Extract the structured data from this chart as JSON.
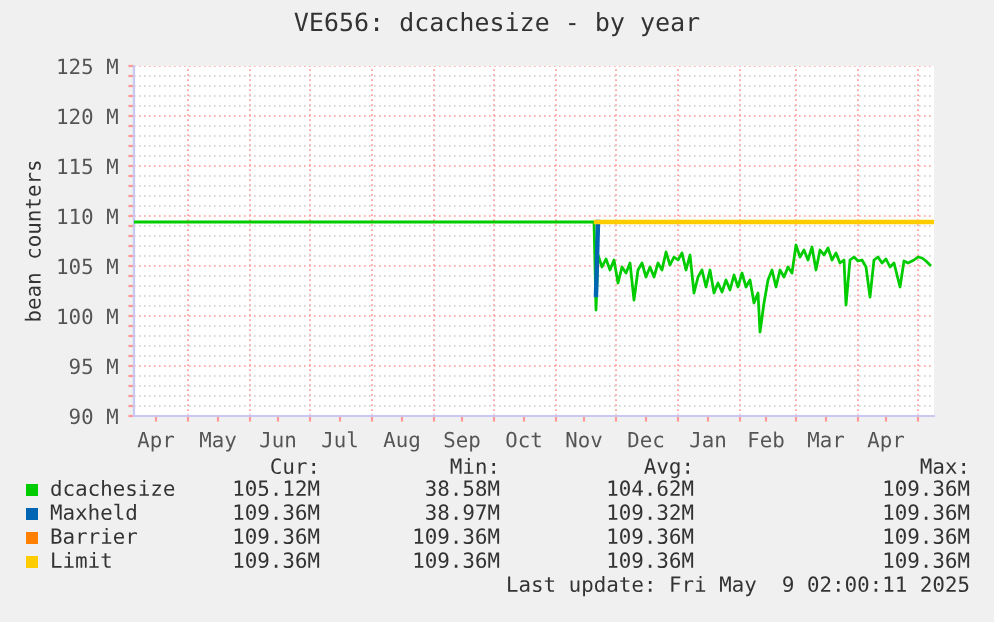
{
  "chart_data": {
    "type": "line",
    "title": "VE656: dcachesize - by year",
    "ylabel": "bean counters",
    "xlim": [
      "2024-04-04",
      "2025-05-09"
    ],
    "ylim": [
      90000000,
      125000000
    ],
    "xticks": [
      {
        "value": "2024-04-15",
        "label": "Apr"
      },
      {
        "value": "2024-05-01",
        "label": null
      },
      {
        "value": "2024-05-16",
        "label": "May"
      },
      {
        "value": "2024-06-01",
        "label": null
      },
      {
        "value": "2024-06-15",
        "label": "Jun"
      },
      {
        "value": "2024-07-01",
        "label": null
      },
      {
        "value": "2024-07-16",
        "label": "Jul"
      },
      {
        "value": "2024-08-01",
        "label": null
      },
      {
        "value": "2024-08-16",
        "label": "Aug"
      },
      {
        "value": "2024-09-01",
        "label": null
      },
      {
        "value": "2024-09-15",
        "label": "Sep"
      },
      {
        "value": "2024-10-01",
        "label": null
      },
      {
        "value": "2024-10-16",
        "label": "Oct"
      },
      {
        "value": "2024-11-01",
        "label": null
      },
      {
        "value": "2024-11-15",
        "label": "Nov"
      },
      {
        "value": "2024-12-01",
        "label": null
      },
      {
        "value": "2024-12-16",
        "label": "Dec"
      },
      {
        "value": "2025-01-01",
        "label": null
      },
      {
        "value": "2025-01-16",
        "label": "Jan"
      },
      {
        "value": "2025-02-01",
        "label": null
      },
      {
        "value": "2025-02-14",
        "label": "Feb"
      },
      {
        "value": "2025-03-01",
        "label": null
      },
      {
        "value": "2025-03-16",
        "label": "Mar"
      },
      {
        "value": "2025-04-01",
        "label": null
      },
      {
        "value": "2025-04-15",
        "label": "Apr"
      },
      {
        "value": "2025-05-01",
        "label": null
      }
    ],
    "yticks": [
      {
        "value": 90000000,
        "label": "90 M"
      },
      {
        "value": 91000000,
        "label": null
      },
      {
        "value": 92000000,
        "label": null
      },
      {
        "value": 93000000,
        "label": null
      },
      {
        "value": 94000000,
        "label": null
      },
      {
        "value": 95000000,
        "label": "95 M"
      },
      {
        "value": 96000000,
        "label": null
      },
      {
        "value": 97000000,
        "label": null
      },
      {
        "value": 98000000,
        "label": null
      },
      {
        "value": 99000000,
        "label": null
      },
      {
        "value": 100000000,
        "label": "100 M"
      },
      {
        "value": 101000000,
        "label": null
      },
      {
        "value": 102000000,
        "label": null
      },
      {
        "value": 103000000,
        "label": null
      },
      {
        "value": 104000000,
        "label": null
      },
      {
        "value": 105000000,
        "label": "105 M"
      },
      {
        "value": 106000000,
        "label": null
      },
      {
        "value": 107000000,
        "label": null
      },
      {
        "value": 108000000,
        "label": null
      },
      {
        "value": 109000000,
        "label": null
      },
      {
        "value": 110000000,
        "label": "110 M"
      },
      {
        "value": 111000000,
        "label": null
      },
      {
        "value": 112000000,
        "label": null
      },
      {
        "value": 113000000,
        "label": null
      },
      {
        "value": 114000000,
        "label": null
      },
      {
        "value": 115000000,
        "label": "115 M"
      },
      {
        "value": 116000000,
        "label": null
      },
      {
        "value": 117000000,
        "label": null
      },
      {
        "value": 118000000,
        "label": null
      },
      {
        "value": 119000000,
        "label": null
      },
      {
        "value": 120000000,
        "label": "120 M"
      },
      {
        "value": 121000000,
        "label": null
      },
      {
        "value": 122000000,
        "label": null
      },
      {
        "value": 123000000,
        "label": null
      },
      {
        "value": 124000000,
        "label": null
      },
      {
        "value": 125000000,
        "label": "125 M"
      }
    ],
    "grid": true,
    "legend": "bottom",
    "marker": "none",
    "line_style": "solid",
    "series": [
      {
        "name": "dcachesize",
        "color": "#00cc00",
        "x": [
          "2024-04-04",
          "2024-11-20",
          "2024-11-21",
          "2024-11-22",
          "2024-11-24",
          "2024-11-26",
          "2024-11-28",
          "2024-11-30",
          "2024-12-02",
          "2024-12-04",
          "2024-12-06",
          "2024-12-08",
          "2024-12-10",
          "2024-12-12",
          "2024-12-14",
          "2024-12-16",
          "2024-12-18",
          "2024-12-20",
          "2024-12-22",
          "2024-12-24",
          "2024-12-26",
          "2024-12-28",
          "2024-12-30",
          "2025-01-01",
          "2025-01-03",
          "2025-01-05",
          "2025-01-07",
          "2025-01-09",
          "2025-01-11",
          "2025-01-13",
          "2025-01-15",
          "2025-01-17",
          "2025-01-19",
          "2025-01-21",
          "2025-01-23",
          "2025-01-25",
          "2025-01-27",
          "2025-01-29",
          "2025-01-31",
          "2025-02-02",
          "2025-02-04",
          "2025-02-06",
          "2025-02-08",
          "2025-02-10",
          "2025-02-11",
          "2025-02-13",
          "2025-02-15",
          "2025-02-17",
          "2025-02-19",
          "2025-02-21",
          "2025-02-23",
          "2025-02-25",
          "2025-02-27",
          "2025-03-01",
          "2025-03-03",
          "2025-03-05",
          "2025-03-07",
          "2025-03-09",
          "2025-03-11",
          "2025-03-13",
          "2025-03-15",
          "2025-03-17",
          "2025-03-19",
          "2025-03-21",
          "2025-03-23",
          "2025-03-25",
          "2025-03-26",
          "2025-03-28",
          "2025-03-30",
          "2025-04-01",
          "2025-04-03",
          "2025-04-05",
          "2025-04-07",
          "2025-04-09",
          "2025-04-11",
          "2025-04-13",
          "2025-04-15",
          "2025-04-17",
          "2025-04-19",
          "2025-04-22",
          "2025-04-24",
          "2025-04-26",
          "2025-04-29",
          "2025-05-01",
          "2025-05-03",
          "2025-05-05",
          "2025-05-07"
        ],
        "values": [
          109400000,
          109400000,
          100600000,
          106100000,
          104900000,
          105700000,
          104600000,
          105600000,
          103300000,
          104900000,
          104300000,
          105300000,
          101600000,
          104600000,
          105300000,
          103900000,
          104900000,
          103900000,
          105300000,
          104600000,
          106400000,
          105100000,
          105900000,
          105600000,
          106300000,
          104600000,
          106100000,
          102300000,
          103900000,
          104600000,
          102900000,
          104600000,
          102300000,
          103300000,
          102400000,
          103600000,
          102600000,
          104100000,
          102900000,
          104300000,
          102900000,
          103600000,
          101300000,
          102300000,
          98400000,
          101300000,
          103600000,
          104600000,
          102900000,
          104600000,
          103900000,
          104900000,
          104300000,
          107100000,
          105900000,
          106600000,
          105600000,
          106900000,
          104600000,
          106600000,
          106100000,
          106800000,
          105600000,
          106300000,
          105300000,
          105600000,
          101100000,
          105600000,
          105900000,
          105500000,
          105600000,
          104900000,
          101900000,
          105600000,
          105900000,
          105300000,
          105700000,
          104900000,
          105300000,
          102900000,
          105500000,
          105300000,
          105600000,
          105900000,
          105800000,
          105500000,
          105100000
        ]
      },
      {
        "name": "Maxheld",
        "color": "#0066b3",
        "x": [
          "2024-11-21",
          "2024-11-22"
        ],
        "values": [
          102100000,
          109400000
        ]
      },
      {
        "name": "Barrier",
        "color": "#ff8000"
      },
      {
        "name": "Limit",
        "color": "#ffcc00",
        "x": [
          "2024-11-21",
          "2025-05-08"
        ],
        "values": [
          109400000,
          109400000
        ]
      }
    ],
    "annotations": [
      "Cur:",
      "Min:",
      "Avg:",
      "Max:",
      "105.12M",
      "38.58M",
      "104.62M",
      "109.36M",
      "109.36M",
      "38.97M",
      "109.32M",
      "109.36M",
      "109.36M",
      "109.36M",
      "109.36M",
      "109.36M",
      "109.36M",
      "109.36M",
      "109.36M",
      "109.36M",
      "Last update: Fri May  9 02:00:11 2025"
    ]
  }
}
